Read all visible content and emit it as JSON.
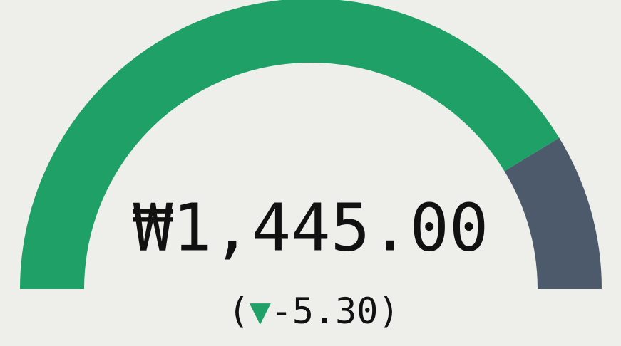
{
  "chart_data": {
    "type": "gauge",
    "value": 1445,
    "value_label": "₩1,445.00",
    "delta": -5.3,
    "delta_label": "(▼-5.30)",
    "range": [
      0,
      1750
    ],
    "bar_color": "#1fa066",
    "background_color": "#4c5a6b",
    "delta_color": "#1fa066"
  }
}
